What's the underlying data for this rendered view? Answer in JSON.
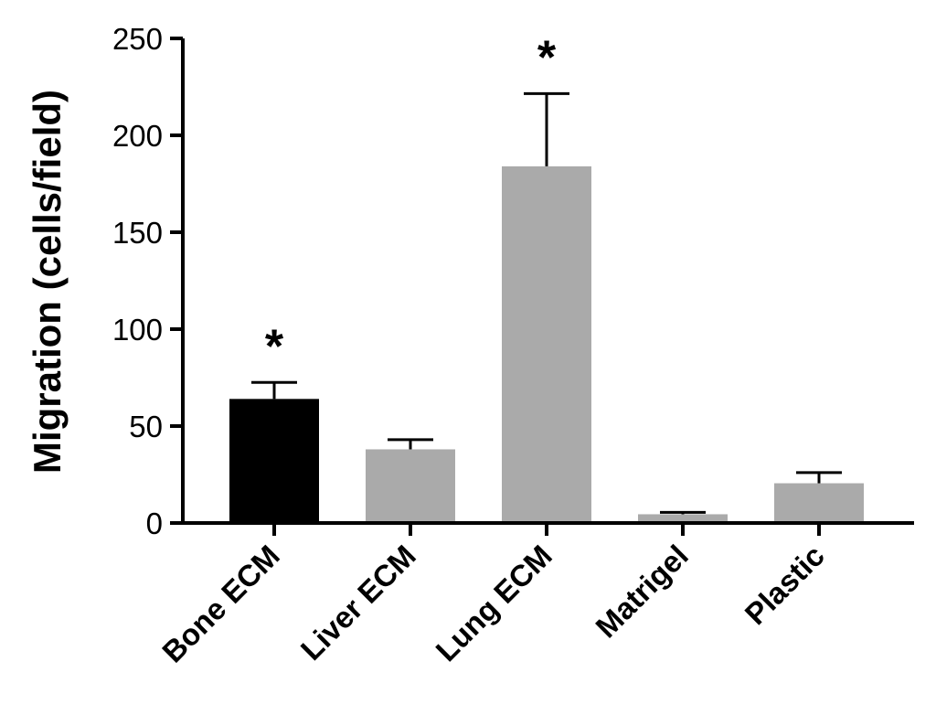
{
  "chart_data": {
    "type": "bar",
    "title": "",
    "xlabel": "",
    "ylabel": "Migration (cells/field)",
    "ylim": [
      0,
      250
    ],
    "yticks": [
      "0",
      "50",
      "100",
      "150",
      "200",
      "250"
    ],
    "categories": [
      "Bone ECM",
      "Liver ECM",
      "Lung ECM",
      "Matrigel",
      "Plastic"
    ],
    "values": [
      64,
      38,
      184,
      4.5,
      20.5
    ],
    "error_upper": [
      72.5,
      43,
      221.5,
      5.5,
      26
    ],
    "significance": [
      "*",
      "",
      "*",
      "",
      ""
    ],
    "colors": [
      "#000000",
      "#aaaaaa",
      "#aaaaaa",
      "#aaaaaa",
      "#aaaaaa"
    ],
    "grid": false,
    "legend": "none"
  }
}
